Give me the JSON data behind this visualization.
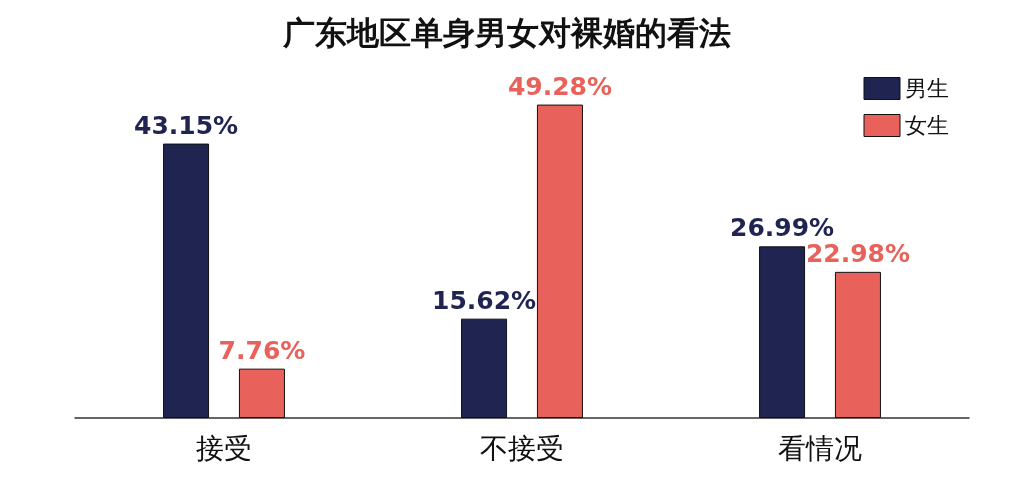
{
  "chart_data": {
    "type": "bar",
    "title": "广东地区单身男女对裸婚的看法",
    "categories": [
      "接受",
      "不接受",
      "看情况"
    ],
    "series": [
      {
        "name": "男生",
        "color": "#1f2451",
        "values": [
          43.15,
          15.62,
          26.99
        ],
        "value_labels": [
          "43.15%",
          "15.62%",
          "26.99%"
        ]
      },
      {
        "name": "女生",
        "color": "#e8615a",
        "values": [
          7.76,
          49.28,
          22.98
        ],
        "value_labels": [
          "7.76%",
          "49.28%",
          "22.98%"
        ]
      }
    ],
    "legend": "top right",
    "grid": false
  }
}
